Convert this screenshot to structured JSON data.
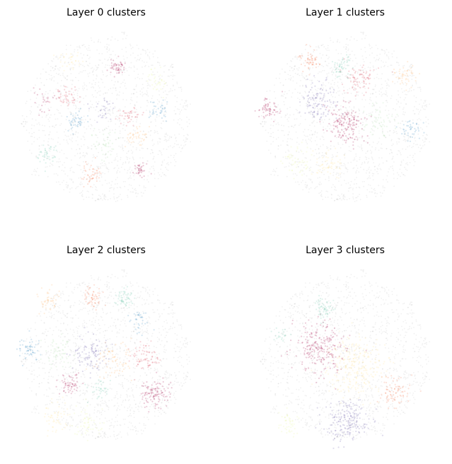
{
  "figure": {
    "background": "#ffffff"
  },
  "chart_data": [
    {
      "type": "scatter",
      "title": "Layer 0 clusters",
      "axes": "off",
      "grid": false,
      "point_alpha": 0.2,
      "noise_color": "#bbbbbb",
      "palette": [
        "#9e0142",
        "#d53e4f",
        "#f46d43",
        "#fdae61",
        "#fee08b",
        "#e6f598",
        "#abdda4",
        "#66c2a5",
        "#3288bd",
        "#5e4fa2"
      ],
      "clusters": [
        {
          "color": "#9e0142",
          "center": [
            0.55,
            0.22
          ],
          "spread": 0.02,
          "n": 50
        },
        {
          "color": "#d53e4f",
          "center": [
            0.28,
            0.38
          ],
          "spread": 0.03,
          "n": 45
        },
        {
          "color": "#d53e4f",
          "center": [
            0.62,
            0.48
          ],
          "spread": 0.03,
          "n": 40
        },
        {
          "color": "#f46d43",
          "center": [
            0.42,
            0.8
          ],
          "spread": 0.03,
          "n": 45
        },
        {
          "color": "#fdae61",
          "center": [
            0.66,
            0.58
          ],
          "spread": 0.03,
          "n": 40
        },
        {
          "color": "#fee08b",
          "center": [
            0.3,
            0.18
          ],
          "spread": 0.03,
          "n": 30
        },
        {
          "color": "#e6f598",
          "center": [
            0.78,
            0.3
          ],
          "spread": 0.03,
          "n": 35
        },
        {
          "color": "#abdda4",
          "center": [
            0.5,
            0.62
          ],
          "spread": 0.04,
          "n": 40
        },
        {
          "color": "#66c2a5",
          "center": [
            0.18,
            0.68
          ],
          "spread": 0.03,
          "n": 40
        },
        {
          "color": "#3288bd",
          "center": [
            0.33,
            0.5
          ],
          "spread": 0.03,
          "n": 45
        },
        {
          "color": "#3288bd",
          "center": [
            0.78,
            0.45
          ],
          "spread": 0.03,
          "n": 35
        },
        {
          "color": "#5e4fa2",
          "center": [
            0.48,
            0.45
          ],
          "spread": 0.03,
          "n": 30
        },
        {
          "color": "#9e0142",
          "center": [
            0.68,
            0.78
          ],
          "spread": 0.02,
          "n": 35
        },
        {
          "color": "#9e0142",
          "center": [
            0.15,
            0.4
          ],
          "spread": 0.03,
          "n": 25
        }
      ]
    },
    {
      "type": "scatter",
      "title": "Layer 1 clusters",
      "axes": "off",
      "grid": false,
      "point_alpha": 0.2,
      "noise_color": "#bbbbbb",
      "palette": [
        "#9e0142",
        "#d53e4f",
        "#f46d43",
        "#fdae61",
        "#fee08b",
        "#e6f598",
        "#abdda4",
        "#66c2a5",
        "#3288bd",
        "#5e4fa2"
      ],
      "clusters": [
        {
          "color": "#9e0142",
          "center": [
            0.5,
            0.52
          ],
          "spread": 0.05,
          "n": 160
        },
        {
          "color": "#9e0142",
          "center": [
            0.08,
            0.44
          ],
          "spread": 0.03,
          "n": 60
        },
        {
          "color": "#d53e4f",
          "center": [
            0.58,
            0.28
          ],
          "spread": 0.04,
          "n": 80
        },
        {
          "color": "#f46d43",
          "center": [
            0.3,
            0.18
          ],
          "spread": 0.03,
          "n": 55
        },
        {
          "color": "#fdae61",
          "center": [
            0.82,
            0.26
          ],
          "spread": 0.03,
          "n": 45
        },
        {
          "color": "#fee08b",
          "center": [
            0.4,
            0.74
          ],
          "spread": 0.04,
          "n": 55
        },
        {
          "color": "#e6f598",
          "center": [
            0.24,
            0.72
          ],
          "spread": 0.04,
          "n": 50
        },
        {
          "color": "#abdda4",
          "center": [
            0.68,
            0.5
          ],
          "spread": 0.04,
          "n": 55
        },
        {
          "color": "#66c2a5",
          "center": [
            0.48,
            0.22
          ],
          "spread": 0.03,
          "n": 50
        },
        {
          "color": "#3288bd",
          "center": [
            0.85,
            0.56
          ],
          "spread": 0.03,
          "n": 40
        },
        {
          "color": "#5e4fa2",
          "center": [
            0.36,
            0.4
          ],
          "spread": 0.05,
          "n": 110
        }
      ]
    },
    {
      "type": "scatter",
      "title": "Layer 2 clusters",
      "axes": "off",
      "grid": false,
      "point_alpha": 0.2,
      "noise_color": "#bbbbbb",
      "palette": [
        "#9e0142",
        "#d53e4f",
        "#f46d43",
        "#fdae61",
        "#fee08b",
        "#e6f598",
        "#abdda4",
        "#66c2a5",
        "#3288bd",
        "#5e4fa2"
      ],
      "clusters": [
        {
          "color": "#9e0142",
          "center": [
            0.76,
            0.7
          ],
          "spread": 0.04,
          "n": 110
        },
        {
          "color": "#9e0142",
          "center": [
            0.3,
            0.65
          ],
          "spread": 0.03,
          "n": 60
        },
        {
          "color": "#d53e4f",
          "center": [
            0.7,
            0.5
          ],
          "spread": 0.04,
          "n": 70
        },
        {
          "color": "#f46d43",
          "center": [
            0.42,
            0.18
          ],
          "spread": 0.03,
          "n": 55
        },
        {
          "color": "#fdae61",
          "center": [
            0.18,
            0.18
          ],
          "spread": 0.03,
          "n": 45
        },
        {
          "color": "#fee08b",
          "center": [
            0.22,
            0.82
          ],
          "spread": 0.04,
          "n": 55
        },
        {
          "color": "#e6f598",
          "center": [
            0.4,
            0.86
          ],
          "spread": 0.04,
          "n": 50
        },
        {
          "color": "#abdda4",
          "center": [
            0.24,
            0.48
          ],
          "spread": 0.04,
          "n": 55
        },
        {
          "color": "#66c2a5",
          "center": [
            0.6,
            0.18
          ],
          "spread": 0.03,
          "n": 55
        },
        {
          "color": "#66c2a5",
          "center": [
            0.46,
            0.68
          ],
          "spread": 0.03,
          "n": 35
        },
        {
          "color": "#3288bd",
          "center": [
            0.08,
            0.46
          ],
          "spread": 0.03,
          "n": 55
        },
        {
          "color": "#3288bd",
          "center": [
            0.68,
            0.3
          ],
          "spread": 0.03,
          "n": 35
        },
        {
          "color": "#5e4fa2",
          "center": [
            0.42,
            0.48
          ],
          "spread": 0.05,
          "n": 100
        },
        {
          "color": "#fdae61",
          "center": [
            0.54,
            0.52
          ],
          "spread": 0.05,
          "n": 70
        }
      ]
    },
    {
      "type": "scatter",
      "title": "Layer 3 clusters",
      "axes": "off",
      "grid": false,
      "point_alpha": 0.2,
      "noise_color": "#bbbbbb",
      "palette": [
        "#9e0142",
        "#d53e4f",
        "#f46d43",
        "#fdae61",
        "#fee08b",
        "#e6f598",
        "#abdda4",
        "#66c2a5",
        "#3288bd",
        "#5e4fa2"
      ],
      "clusters": [
        {
          "color": "#9e0142",
          "center": [
            0.36,
            0.44
          ],
          "spread": 0.07,
          "n": 230
        },
        {
          "color": "#f46d43",
          "center": [
            0.76,
            0.68
          ],
          "spread": 0.04,
          "n": 80
        },
        {
          "color": "#fee08b",
          "center": [
            0.56,
            0.55
          ],
          "spread": 0.08,
          "n": 260
        },
        {
          "color": "#66c2a5",
          "center": [
            0.38,
            0.24
          ],
          "spread": 0.03,
          "n": 60
        },
        {
          "color": "#66c2a5",
          "center": [
            0.16,
            0.38
          ],
          "spread": 0.02,
          "n": 20
        },
        {
          "color": "#e6f598",
          "center": [
            0.18,
            0.86
          ],
          "spread": 0.03,
          "n": 45
        },
        {
          "color": "#5e4fa2",
          "center": [
            0.5,
            0.85
          ],
          "spread": 0.06,
          "n": 190
        }
      ]
    }
  ]
}
